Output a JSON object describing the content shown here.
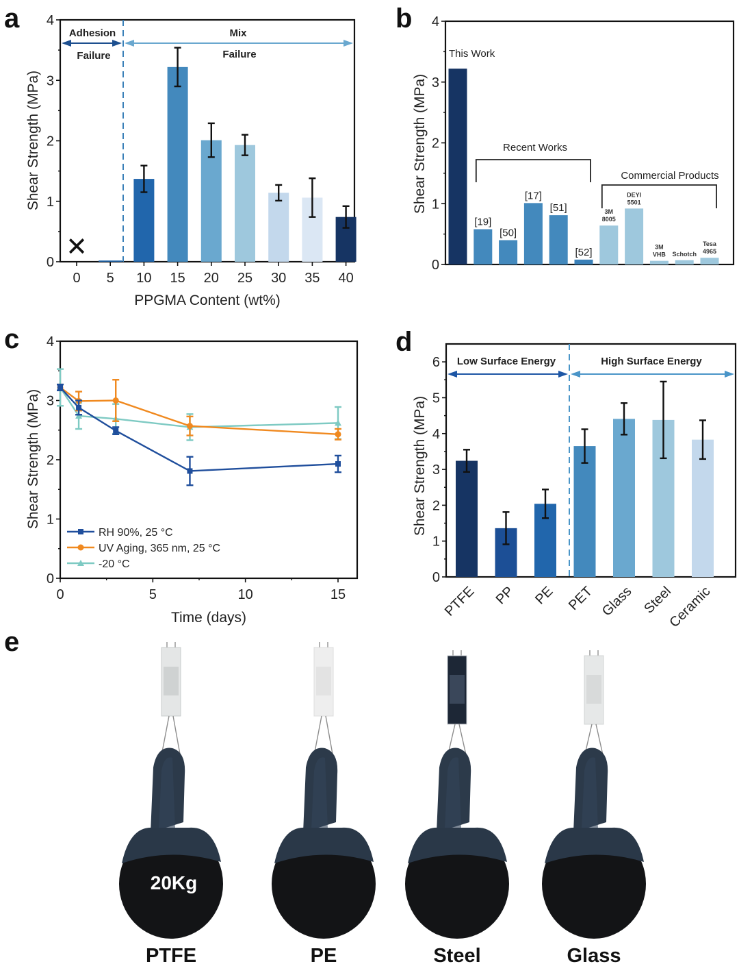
{
  "figure": {
    "panel_letters": [
      "a",
      "b",
      "c",
      "d",
      "e"
    ]
  },
  "chart_data": [
    {
      "id": "a",
      "type": "bar",
      "title": "",
      "xlabel": "PPGMA Content (wt%)",
      "ylabel": "Shear Strength (MPa)",
      "ylim": [
        0,
        4
      ],
      "yticks": [
        "0",
        "1",
        "2",
        "3",
        "4"
      ],
      "categories": [
        "0",
        "5",
        "10",
        "15",
        "20",
        "25",
        "30",
        "35",
        "40"
      ],
      "values": [
        0,
        0.02,
        1.37,
        3.22,
        2.01,
        1.93,
        1.14,
        1.06,
        0.74
      ],
      "errors": [
        0,
        0.01,
        0.22,
        0.32,
        0.28,
        0.17,
        0.13,
        0.32,
        0.18
      ],
      "colors": [
        "#ffffff",
        "#2166ac",
        "#2166ac",
        "#4389bd",
        "#6aa8cf",
        "#9ec8dd",
        "#c3d8ec",
        "#dbe7f4",
        "#163463"
      ],
      "zero_marker": "✕",
      "regions": [
        {
          "label_top": "Adhesion",
          "label_bottom": "Failure",
          "color": "#1d4f8f"
        },
        {
          "label_top": "Mix",
          "label_bottom": "Failure",
          "color": "#6aa8cf"
        }
      ],
      "divider_after_category": "5",
      "grid": false
    },
    {
      "id": "b",
      "type": "bar",
      "title": "",
      "xlabel": "",
      "ylabel": "Shear Strength (MPa)",
      "ylim": [
        0,
        4
      ],
      "yticks": [
        "0",
        "1",
        "2",
        "3",
        "4"
      ],
      "categories": [
        "This Work",
        "[19]",
        "[50]",
        "[17]",
        "[51]",
        "[52]",
        "3M 8005",
        "DEYI 5501",
        "3M VHB",
        "Schotch",
        "Tesa 4965"
      ],
      "values": [
        3.22,
        0.58,
        0.4,
        1.01,
        0.81,
        0.08,
        0.64,
        0.92,
        0.06,
        0.07,
        0.11
      ],
      "colors": [
        "#163463",
        "#4389bd",
        "#4389bd",
        "#4389bd",
        "#4389bd",
        "#3a80b8",
        "#9ec8dd",
        "#9ec8dd",
        "#9ec8dd",
        "#9ec8dd",
        "#9ec8dd"
      ],
      "bar_labels": [
        {
          "lines": [
            "This Work"
          ],
          "size": "normal"
        },
        {
          "lines": [
            "[19]"
          ],
          "size": "normal"
        },
        {
          "lines": [
            "[50]"
          ],
          "size": "normal"
        },
        {
          "lines": [
            "[17]"
          ],
          "size": "normal"
        },
        {
          "lines": [
            "[51]"
          ],
          "size": "normal"
        },
        {
          "lines": [
            "[52]"
          ],
          "size": "normal"
        },
        {
          "lines": [
            "3M",
            "8005"
          ],
          "size": "small"
        },
        {
          "lines": [
            "DEYI",
            "5501"
          ],
          "size": "small"
        },
        {
          "lines": [
            "3M",
            "VHB"
          ],
          "size": "small"
        },
        {
          "lines": [
            "Schotch"
          ],
          "size": "small"
        },
        {
          "lines": [
            "Tesa",
            "4965"
          ],
          "size": "small"
        }
      ],
      "groups": [
        {
          "label": "Recent Works",
          "from": 1,
          "to": 5
        },
        {
          "label": "Commercial Products",
          "from": 6,
          "to": 10
        }
      ],
      "grid": false
    },
    {
      "id": "c",
      "type": "line",
      "title": "",
      "xlabel": "Time (days)",
      "ylabel": "Shear Strength (MPa)",
      "xlim": [
        0,
        16
      ],
      "ylim": [
        0,
        4
      ],
      "xticks": [
        "0",
        "5",
        "10",
        "15"
      ],
      "yticks": [
        "0",
        "1",
        "2",
        "3",
        "4"
      ],
      "x": [
        0,
        1,
        3,
        7,
        15
      ],
      "series": [
        {
          "name": "RH 90%, 25 °C",
          "marker": "square",
          "color": "#1f4e9c",
          "values": [
            3.22,
            2.88,
            2.49,
            1.81,
            1.93
          ],
          "errors": [
            0.05,
            0.12,
            0.06,
            0.24,
            0.14
          ]
        },
        {
          "name": "UV Aging, 365 nm, 25 °C",
          "marker": "circle",
          "color": "#f0891f",
          "values": [
            3.22,
            2.99,
            3.0,
            2.57,
            2.43
          ],
          "errors": [
            0.05,
            0.16,
            0.35,
            0.16,
            0.09
          ]
        },
        {
          "name": "-20 °C",
          "marker": "triangle",
          "color": "#7ecac3",
          "values": [
            3.22,
            2.74,
            2.69,
            2.55,
            2.62
          ],
          "errors": [
            0.31,
            0.22,
            0.25,
            0.22,
            0.27
          ]
        }
      ],
      "legend_position": "bottom-left",
      "grid": false
    },
    {
      "id": "d",
      "type": "bar",
      "title": "",
      "xlabel": "",
      "ylabel": "Shear Strength (MPa)",
      "ylim": [
        0,
        6.5
      ],
      "yticks": [
        "0",
        "1",
        "2",
        "3",
        "4",
        "5",
        "6"
      ],
      "categories": [
        "PTFE",
        "PP",
        "PE",
        "PET",
        "Glass",
        "Steel",
        "Ceramic"
      ],
      "values": [
        3.24,
        1.36,
        2.04,
        3.65,
        4.41,
        4.38,
        3.83
      ],
      "errors": [
        0.31,
        0.45,
        0.4,
        0.47,
        0.44,
        1.07,
        0.54
      ],
      "colors": [
        "#163463",
        "#1c4f96",
        "#2166ac",
        "#4389bd",
        "#6aa8cf",
        "#9ec8dd",
        "#c3d8ec"
      ],
      "regions": [
        {
          "label": "Low Surface Energy",
          "color": "#1d56a5"
        },
        {
          "label": "High Surface Energy",
          "color": "#4a95c8"
        }
      ],
      "divider_after_category": "PE",
      "grid": false
    }
  ],
  "photos": {
    "weight_label": "20Kg",
    "items": [
      {
        "label": "PTFE",
        "plate": "aluminum"
      },
      {
        "label": "PE",
        "plate": "white"
      },
      {
        "label": "Steel",
        "plate": "steel-dark"
      },
      {
        "label": "Glass",
        "plate": "glass"
      }
    ]
  }
}
